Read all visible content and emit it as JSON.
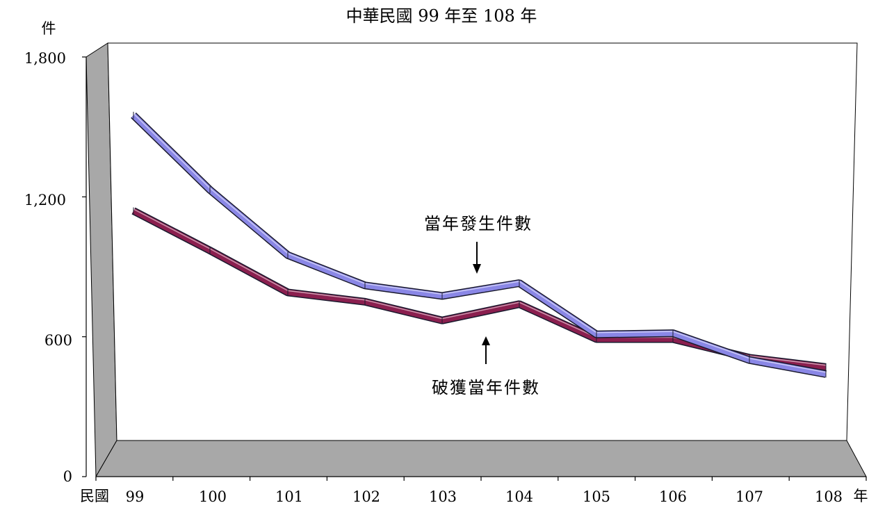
{
  "chart_data": {
    "type": "line",
    "title": "中華民國 99 年至 108 年",
    "ylabel": "件",
    "xlabel_prefix": "民國",
    "xlabel_suffix": "年",
    "categories": [
      "99",
      "100",
      "101",
      "102",
      "103",
      "104",
      "105",
      "106",
      "107",
      "108"
    ],
    "y_ticks": [
      "1,800",
      "1,200",
      "600",
      "0"
    ],
    "ylim": [
      0,
      1800
    ],
    "grid": false,
    "series": [
      {
        "name": "當年發生件數",
        "color": "#8a87e6",
        "values": [
          1550,
          1230,
          950,
          820,
          775,
          830,
          610,
          615,
          500,
          440
        ]
      },
      {
        "name": "破獲當年件數",
        "color": "#8b1f4f",
        "values": [
          1140,
          970,
          790,
          750,
          670,
          740,
          590,
          590,
          510,
          470
        ]
      }
    ]
  }
}
